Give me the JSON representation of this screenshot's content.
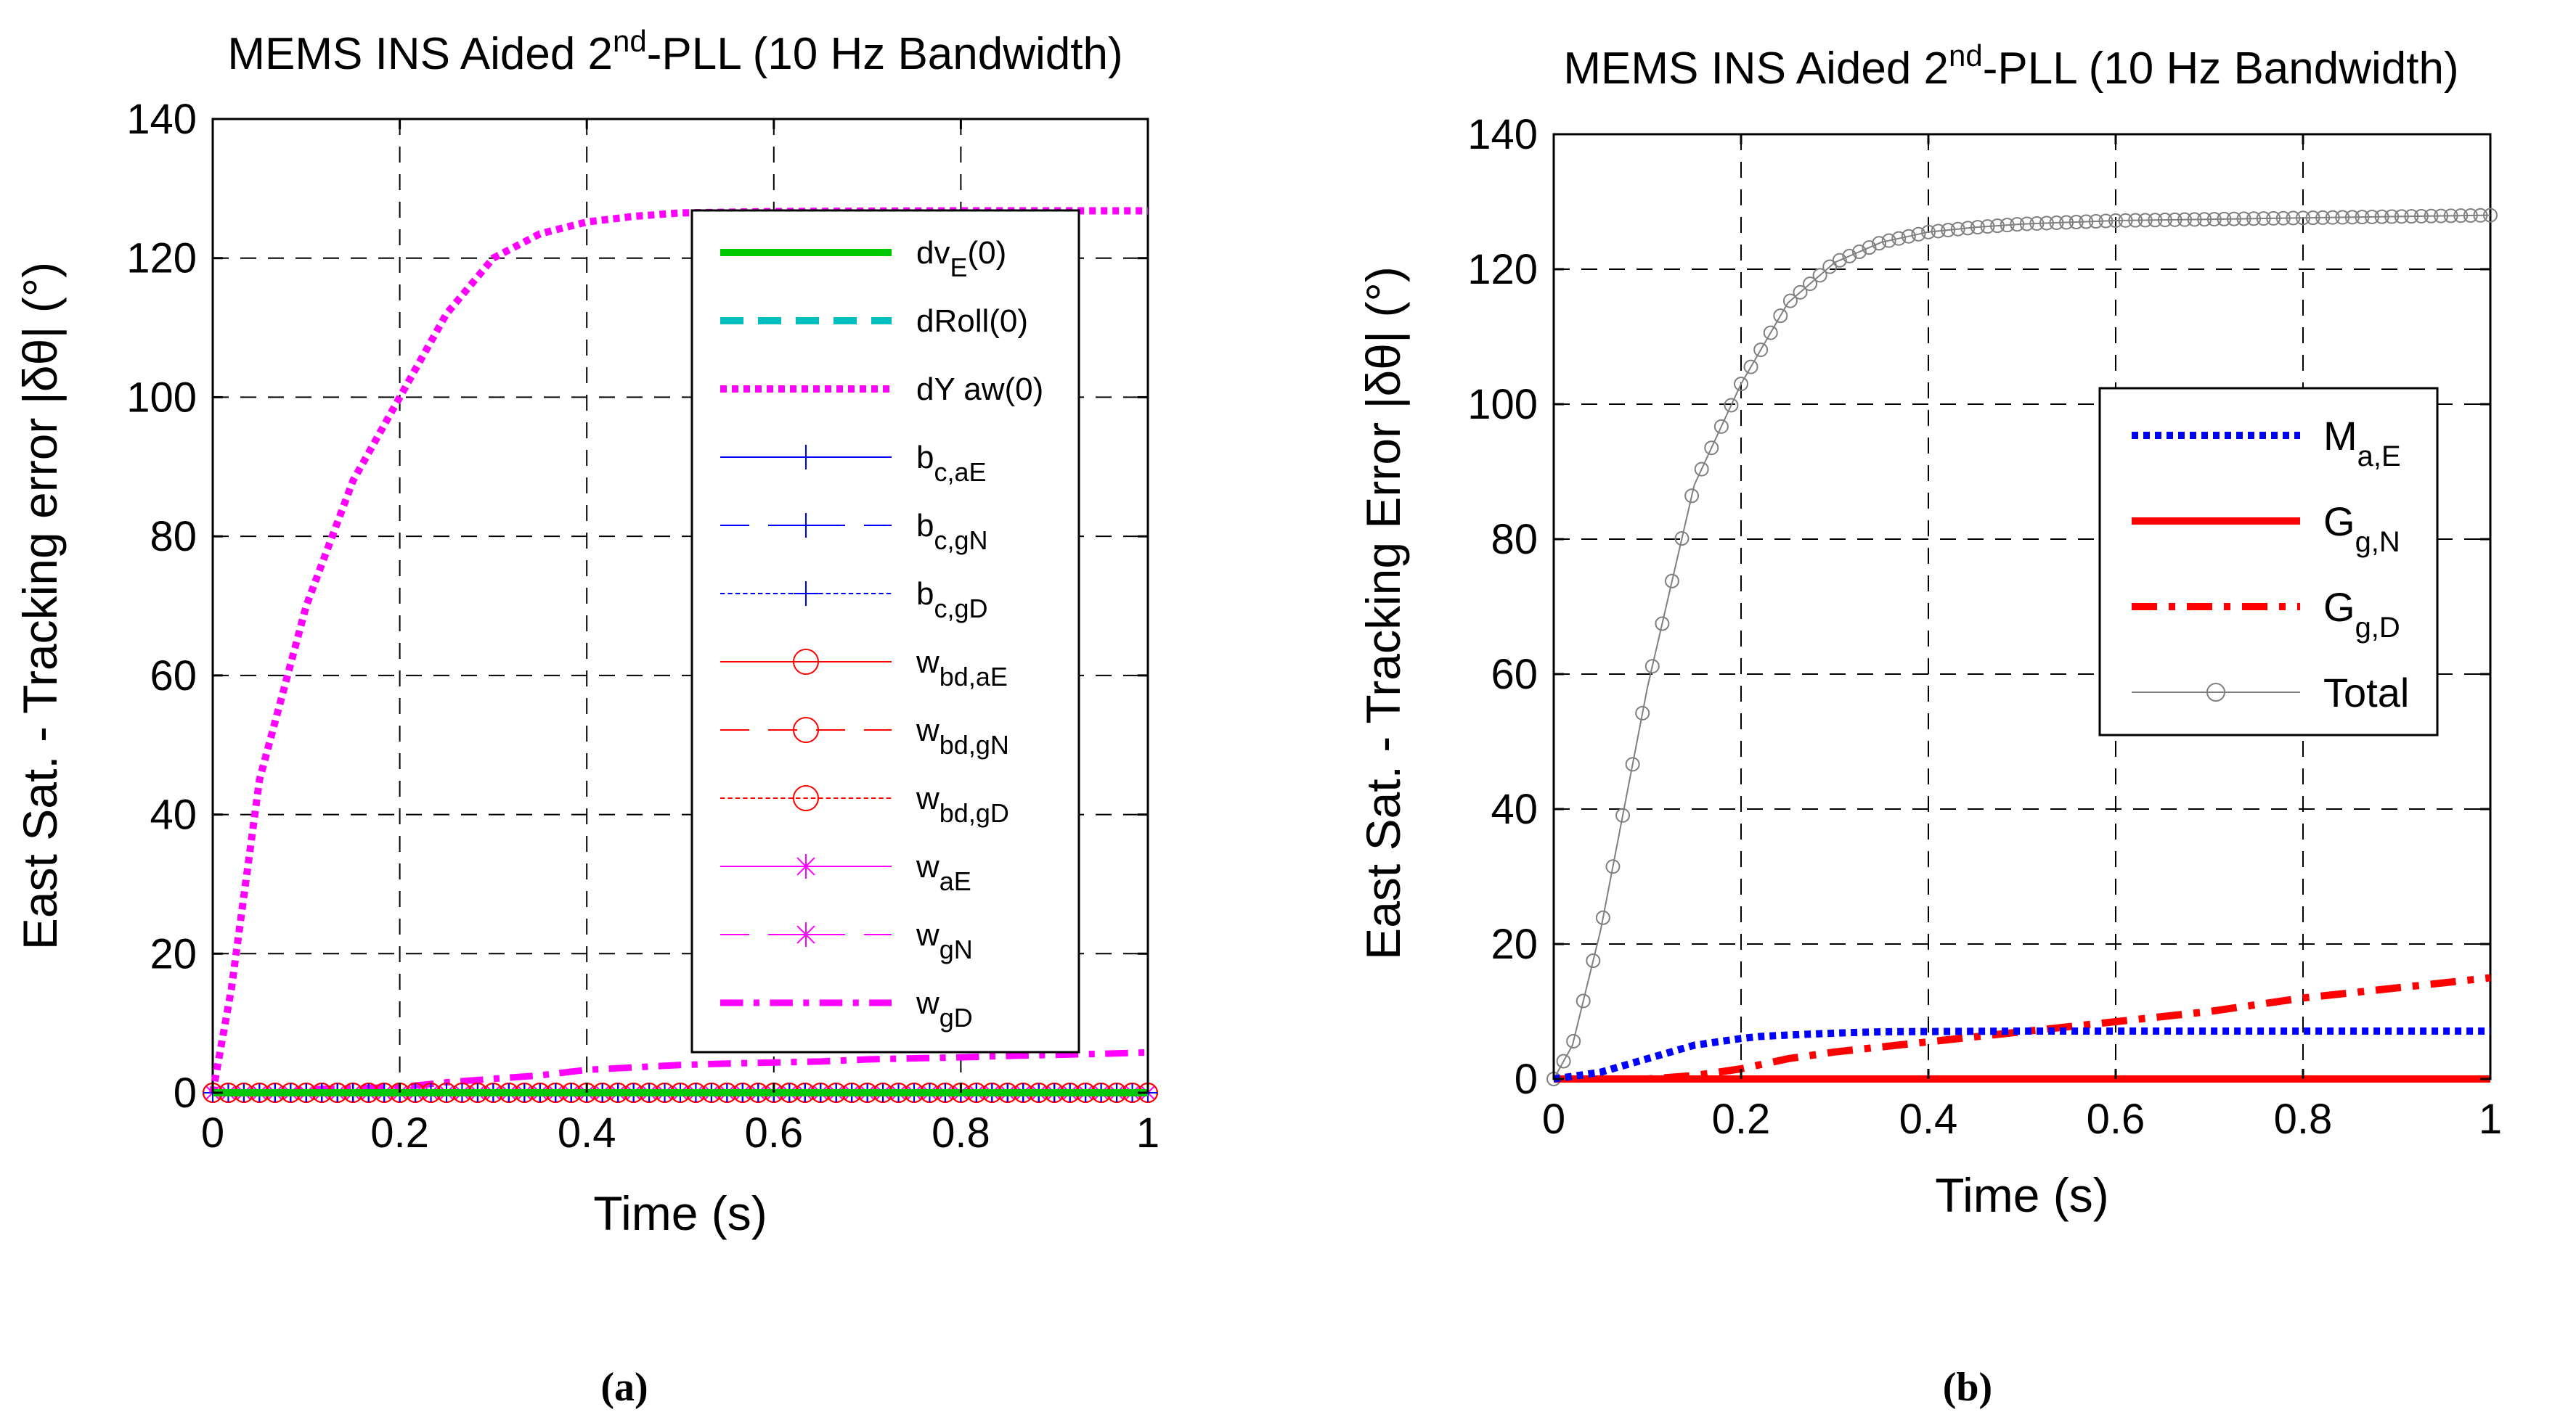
{
  "chart_data": [
    {
      "type": "line",
      "title_main": "MEMS INS Aided 2",
      "title_sup": "nd",
      "title_rest": "-PLL (10 Hz Bandwidth)",
      "xlabel": "Time (s)",
      "ylabel": "East Sat. - Tracking error |δθ| (°)",
      "xlim": [
        0,
        1
      ],
      "ylim": [
        0,
        140
      ],
      "xticks": [
        "0",
        "0.2",
        "0.4",
        "0.6",
        "0.8",
        "1"
      ],
      "yticks": [
        "0",
        "20",
        "40",
        "60",
        "80",
        "100",
        "120",
        "140"
      ],
      "grid": true,
      "legend_position": "top-right",
      "caption": "(a)",
      "series": [
        {
          "name": "dv",
          "sub": "E",
          "suffix": "(0)",
          "color": "#00c800",
          "style": "solid",
          "width": 10,
          "marker": "none",
          "x": [
            0,
            1
          ],
          "y": [
            0,
            0
          ]
        },
        {
          "name": "dRoll(0)",
          "sub": "",
          "suffix": "",
          "color": "#00bfbf",
          "style": "dashed",
          "width": 10,
          "marker": "none",
          "x": [
            0,
            1
          ],
          "y": [
            0,
            0
          ]
        },
        {
          "name": "dY aw(0)",
          "sub": "",
          "suffix": "",
          "color": "#ff00ff",
          "style": "dotted",
          "width": 10,
          "marker": "none",
          "x": [
            0,
            0.02,
            0.05,
            0.1,
            0.15,
            0.2,
            0.25,
            0.3,
            0.35,
            0.4,
            0.45,
            0.5,
            0.6,
            0.8,
            1.0
          ],
          "y": [
            0,
            15,
            45,
            70,
            88,
            100,
            112,
            120,
            123.5,
            125.2,
            126,
            126.5,
            126.7,
            126.8,
            126.8
          ]
        },
        {
          "name": "b",
          "sub": "c,aE",
          "suffix": "",
          "color": "#0000ff",
          "style": "solid",
          "width": 2,
          "marker": "plus",
          "x": [
            0,
            1
          ],
          "y": [
            0,
            0
          ]
        },
        {
          "name": "b",
          "sub": "c,gN",
          "suffix": "",
          "color": "#0000ff",
          "style": "longdash",
          "width": 2,
          "marker": "plus",
          "x": [
            0,
            1
          ],
          "y": [
            0,
            0
          ]
        },
        {
          "name": "b",
          "sub": "c,gD",
          "suffix": "",
          "color": "#0000ff",
          "style": "dashed",
          "width": 2,
          "marker": "plus",
          "x": [
            0,
            1
          ],
          "y": [
            0,
            0
          ]
        },
        {
          "name": "w",
          "sub": "bd,aE",
          "suffix": "",
          "color": "#ff0000",
          "style": "solid",
          "width": 2,
          "marker": "circle",
          "x": [
            0,
            1
          ],
          "y": [
            0,
            0
          ]
        },
        {
          "name": "w",
          "sub": "bd,gN",
          "suffix": "",
          "color": "#ff0000",
          "style": "longdash",
          "width": 2,
          "marker": "circle",
          "x": [
            0,
            1
          ],
          "y": [
            0,
            0
          ]
        },
        {
          "name": "w",
          "sub": "bd,gD",
          "suffix": "",
          "color": "#ff0000",
          "style": "dashed",
          "width": 2,
          "marker": "circle",
          "x": [
            0,
            1
          ],
          "y": [
            0,
            0
          ]
        },
        {
          "name": "w",
          "sub": "aE",
          "suffix": "",
          "color": "#ff00ff",
          "style": "solid",
          "width": 2,
          "marker": "star",
          "x": [
            0,
            1
          ],
          "y": [
            0,
            0
          ]
        },
        {
          "name": "w",
          "sub": "gN",
          "suffix": "",
          "color": "#ff00ff",
          "style": "longdash",
          "width": 2,
          "marker": "star",
          "x": [
            0,
            1
          ],
          "y": [
            0,
            0
          ]
        },
        {
          "name": "w",
          "sub": "gD",
          "suffix": "",
          "color": "#ff00ff",
          "style": "dashdot",
          "width": 9,
          "marker": "none",
          "x": [
            0,
            0.08,
            0.1,
            0.2,
            0.25,
            0.35,
            0.4,
            0.5,
            0.55,
            0.65,
            0.7,
            0.8,
            0.85,
            0.95,
            1.0
          ],
          "y": [
            0,
            0,
            0.5,
            0.8,
            1.5,
            2.5,
            3.3,
            4,
            4.2,
            4.5,
            4.8,
            5.1,
            5.3,
            5.6,
            5.8
          ]
        }
      ]
    },
    {
      "type": "line",
      "title_main": "MEMS INS Aided 2",
      "title_sup": "nd",
      "title_rest": "-PLL (10 Hz Bandwidth)",
      "xlabel": "Time (s)",
      "ylabel": "East Sat. - Tracking Error |δθ| (°)",
      "xlim": [
        0,
        1
      ],
      "ylim": [
        0,
        140
      ],
      "xticks": [
        "0",
        "0.2",
        "0.4",
        "0.6",
        "0.8",
        "1"
      ],
      "yticks": [
        "0",
        "20",
        "40",
        "60",
        "80",
        "100",
        "120",
        "140"
      ],
      "grid": true,
      "legend_position": "center-right",
      "caption": "(b)",
      "series": [
        {
          "name": "M",
          "sub": "a,E",
          "suffix": "",
          "color": "#0000ff",
          "style": "dotted",
          "width": 10,
          "marker": "none",
          "x": [
            0,
            0.05,
            0.1,
            0.15,
            0.2,
            0.22,
            0.25,
            0.3,
            0.35,
            0.5,
            1.0
          ],
          "y": [
            0,
            1,
            3,
            5,
            6,
            6.3,
            6.5,
            6.8,
            7,
            7.1,
            7.1
          ]
        },
        {
          "name": "G",
          "sub": "g,N",
          "suffix": "",
          "color": "#ff0000",
          "style": "solid",
          "width": 10,
          "marker": "none",
          "x": [
            0,
            1
          ],
          "y": [
            0,
            0
          ]
        },
        {
          "name": "G",
          "sub": "g,D",
          "suffix": "",
          "color": "#ff0000",
          "style": "dashdot",
          "width": 10,
          "marker": "none",
          "x": [
            0,
            0.1,
            0.15,
            0.2,
            0.25,
            0.3,
            0.4,
            0.5,
            0.6,
            0.7,
            0.8,
            0.9,
            1.0
          ],
          "y": [
            0,
            0,
            0.5,
            1.5,
            3,
            4,
            5.5,
            7,
            8.5,
            10,
            12,
            13.5,
            15
          ]
        },
        {
          "name": "Total",
          "sub": "",
          "suffix": "",
          "color": "#808080",
          "style": "solid",
          "width": 2,
          "marker": "circle",
          "x": [
            0,
            0.02,
            0.05,
            0.1,
            0.15,
            0.2,
            0.25,
            0.3,
            0.35,
            0.4,
            0.45,
            0.5,
            0.6,
            0.8,
            1.0
          ],
          "y": [
            0,
            5,
            22,
            58,
            88,
            103,
            115,
            121,
            124,
            125.5,
            126.2,
            126.7,
            127.2,
            127.6,
            128
          ]
        }
      ]
    }
  ]
}
